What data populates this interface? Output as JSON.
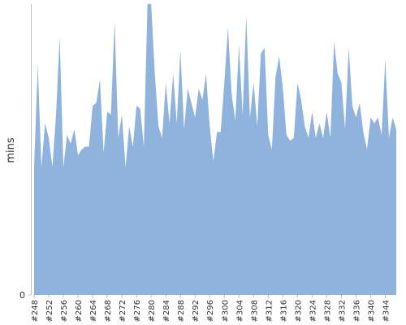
{
  "chart_data": {
    "type": "area",
    "y_label": "mins",
    "color": "#8fb3dc",
    "categories": [
      "#248",
      null,
      null,
      null,
      "#252",
      null,
      null,
      null,
      "#256",
      null,
      null,
      null,
      "#260",
      null,
      null,
      null,
      "#264",
      null,
      null,
      null,
      "#268",
      null,
      null,
      null,
      "#272",
      null,
      null,
      null,
      "#276",
      null,
      null,
      null,
      "#280",
      null,
      null,
      null,
      "#284",
      null,
      null,
      null,
      "#288",
      null,
      null,
      null,
      "#292",
      null,
      null,
      null,
      "#296",
      null,
      null,
      null,
      "#300",
      null,
      null,
      null,
      "#304",
      null,
      null,
      null,
      "#308",
      null,
      null,
      null,
      "#312",
      null,
      null,
      null,
      "#316",
      null,
      null,
      null,
      "#320",
      null,
      null,
      null,
      "#324",
      null,
      null,
      null,
      "#328",
      null,
      null,
      null,
      "#332",
      null,
      null,
      null,
      "#336",
      null,
      null,
      null,
      "#340",
      null,
      null,
      null,
      "#344",
      null,
      null,
      null
    ],
    "values": [
      44,
      79,
      44,
      59,
      54,
      44,
      62,
      89,
      44,
      55,
      52,
      57,
      48,
      50,
      51,
      51,
      65,
      66,
      74,
      49,
      63,
      62,
      94,
      54,
      62,
      44,
      58,
      51,
      65,
      64,
      51,
      100,
      100,
      76,
      58,
      54,
      73,
      59,
      76,
      59,
      84,
      57,
      71,
      66,
      61,
      71,
      67,
      76,
      58,
      46,
      56,
      56,
      73,
      92,
      69,
      60,
      86,
      62,
      96,
      61,
      73,
      58,
      83,
      85,
      55,
      50,
      75,
      82,
      71,
      55,
      53,
      54,
      73,
      67,
      58,
      54,
      63,
      54,
      59,
      54,
      63,
      54,
      87,
      76,
      73,
      57,
      85,
      65,
      61,
      66,
      56,
      50,
      61,
      59,
      61,
      55,
      81,
      54,
      61,
      57
    ],
    "ylim": [
      0,
      100
    ],
    "yticks": [
      0
    ]
  }
}
